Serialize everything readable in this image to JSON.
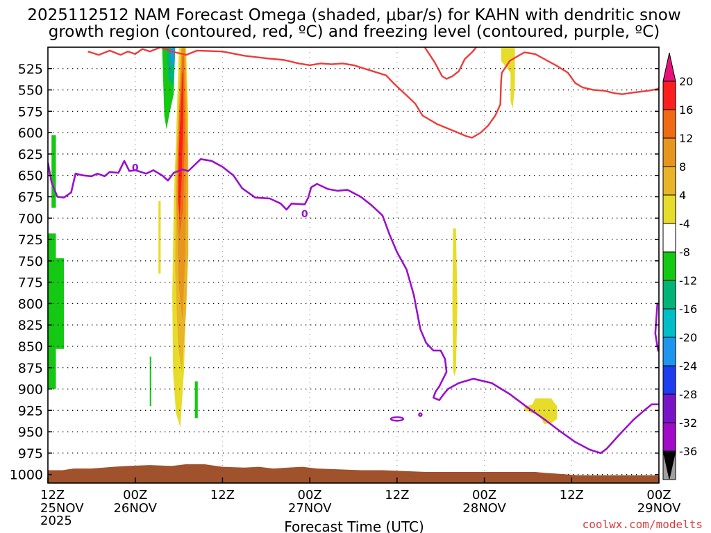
{
  "chart_data": {
    "type": "heatmap",
    "title_line1": "2025112512 NAM Forecast Omega (shaded, μbar/s) for KAHN with dendritic snow",
    "title_line2": "growth region (contoured, red, ºC) and freezing level (contoured, purple, ºC)",
    "xlabel": "Forecast Time (UTC)",
    "ylabel": "",
    "watermark": "coolwx.com/modelts",
    "x_range_hours": [
      0,
      84
    ],
    "y_range_hpa": [
      1010,
      500
    ],
    "x_ticks": [
      {
        "hour": 0,
        "time": "12Z",
        "date": "25NOV",
        "year": "2025"
      },
      {
        "hour": 12,
        "time": "00Z",
        "date": "26NOV",
        "year": ""
      },
      {
        "hour": 24,
        "time": "12Z",
        "date": "",
        "year": ""
      },
      {
        "hour": 36,
        "time": "00Z",
        "date": "27NOV",
        "year": ""
      },
      {
        "hour": 48,
        "time": "12Z",
        "date": "",
        "year": ""
      },
      {
        "hour": 60,
        "time": "00Z",
        "date": "28NOV",
        "year": ""
      },
      {
        "hour": 72,
        "time": "12Z",
        "date": "",
        "year": ""
      },
      {
        "hour": 84,
        "time": "00Z",
        "date": "29NOV",
        "year": ""
      }
    ],
    "y_ticks": [
      525,
      550,
      575,
      600,
      625,
      650,
      675,
      700,
      725,
      750,
      775,
      800,
      825,
      850,
      875,
      900,
      925,
      950,
      975,
      1000
    ],
    "colorbar": {
      "labels": [
        "20",
        "16",
        "12",
        "8",
        "4",
        "-4",
        "-8",
        "-12",
        "-16",
        "-20",
        "-24",
        "-28",
        "-32",
        "-36"
      ],
      "colors": [
        "#ff1e1e",
        "#f06a14",
        "#e6961e",
        "#e8b428",
        "#e8dc2a",
        "#ffffff",
        "#14c814",
        "#00b478",
        "#00bec8",
        "#1e96f0",
        "#1e3cf0",
        "#7814c8",
        "#a00ac8",
        "#a0a0a0"
      ],
      "top_arrow_color": "#e6147a",
      "bottom_arrow_color": "#000000"
    },
    "contour_labels": [
      {
        "text": "0",
        "hour": 12.0,
        "hpa": 640
      },
      {
        "text": "0",
        "hour": 35.3,
        "hpa": 694
      }
    ],
    "dgz_top_curve": [
      [
        5.5,
        505
      ],
      [
        7,
        509
      ],
      [
        8.5,
        504
      ],
      [
        10,
        509
      ],
      [
        11,
        505
      ],
      [
        12,
        508
      ],
      [
        13,
        502
      ],
      [
        14,
        505
      ],
      [
        15.5,
        500
      ],
      [
        17,
        505
      ],
      [
        19,
        509
      ],
      [
        20.5,
        504
      ],
      [
        24,
        505
      ],
      [
        27,
        510
      ],
      [
        30,
        513
      ],
      [
        32.5,
        515
      ],
      [
        34.5,
        519
      ],
      [
        36,
        521
      ],
      [
        37.5,
        519
      ],
      [
        39,
        520
      ],
      [
        40.5,
        519
      ],
      [
        42,
        521
      ],
      [
        43.5,
        525
      ],
      [
        45,
        529
      ],
      [
        46.5,
        533
      ],
      [
        47.5,
        542
      ],
      [
        48.5,
        550
      ],
      [
        49.5,
        558
      ],
      [
        50.5,
        566
      ],
      [
        51.5,
        580
      ],
      [
        53.5,
        590
      ],
      [
        55.5,
        597
      ],
      [
        57.5,
        604
      ],
      [
        58.3,
        606
      ],
      [
        59.5,
        600
      ],
      [
        60.5,
        592
      ],
      [
        61.5,
        580
      ],
      [
        62.2,
        567
      ],
      [
        62.3,
        540
      ],
      [
        62.4,
        530
      ],
      [
        63.5,
        516
      ],
      [
        64.5,
        511
      ],
      [
        65.5,
        506
      ],
      [
        67,
        508
      ],
      [
        68.5,
        515
      ],
      [
        70,
        522
      ],
      [
        71.5,
        530
      ],
      [
        72.5,
        542
      ],
      [
        73.5,
        547
      ],
      [
        75,
        550
      ],
      [
        76.5,
        551
      ],
      [
        78,
        554
      ],
      [
        79,
        555
      ],
      [
        80.5,
        553
      ],
      [
        82.5,
        551
      ],
      [
        83.8,
        549
      ],
      [
        84,
        548
      ]
    ],
    "dgz_bottom_curve": [
      [
        51.8,
        500
      ],
      [
        53.2,
        518
      ],
      [
        54.2,
        534
      ],
      [
        54.8,
        537
      ],
      [
        55.6,
        534
      ],
      [
        56.5,
        528
      ],
      [
        57.3,
        514
      ],
      [
        58.4,
        505
      ],
      [
        58.9,
        500
      ]
    ],
    "freezing_level": [
      [
        0,
        635
      ],
      [
        0.5,
        658
      ],
      [
        1.3,
        675
      ],
      [
        2.2,
        676
      ],
      [
        3.2,
        670
      ],
      [
        3.8,
        648
      ],
      [
        4.8,
        650
      ],
      [
        6,
        651
      ],
      [
        6.8,
        648
      ],
      [
        7.8,
        651
      ],
      [
        8.5,
        646
      ],
      [
        9.7,
        647
      ],
      [
        10.5,
        633
      ],
      [
        11.2,
        645
      ],
      [
        12,
        644
      ],
      [
        12.8,
        646
      ],
      [
        13.5,
        648
      ],
      [
        14.5,
        644
      ],
      [
        15.7,
        650
      ],
      [
        16.5,
        656
      ],
      [
        17.3,
        647
      ],
      [
        18.5,
        643
      ],
      [
        19.3,
        645
      ],
      [
        21,
        631
      ],
      [
        22.5,
        633
      ],
      [
        24,
        640
      ],
      [
        25.5,
        650
      ],
      [
        26.7,
        665
      ],
      [
        28.5,
        676
      ],
      [
        30.5,
        677
      ],
      [
        32,
        683
      ],
      [
        32.8,
        690
      ],
      [
        33.5,
        683
      ],
      [
        35.3,
        684
      ],
      [
        35.8,
        676
      ],
      [
        36.2,
        664
      ],
      [
        37,
        660
      ],
      [
        38.5,
        666
      ],
      [
        39.8,
        668
      ],
      [
        41.2,
        667
      ],
      [
        43,
        675
      ],
      [
        44.5,
        685
      ],
      [
        46,
        697
      ],
      [
        47,
        720
      ],
      [
        48,
        740
      ],
      [
        49.3,
        760
      ],
      [
        50.3,
        790
      ],
      [
        51.2,
        830
      ],
      [
        52,
        846
      ],
      [
        53,
        855
      ],
      [
        54,
        855
      ],
      [
        54.6,
        865
      ],
      [
        54.8,
        880
      ],
      [
        53.8,
        897
      ],
      [
        53.3,
        903
      ],
      [
        53,
        910
      ],
      [
        53.8,
        913
      ],
      [
        54.5,
        905
      ],
      [
        55,
        900
      ],
      [
        56.5,
        893
      ],
      [
        58.5,
        888
      ],
      [
        61,
        893
      ],
      [
        63.5,
        906
      ],
      [
        66,
        922
      ],
      [
        68.5,
        937
      ],
      [
        70.5,
        950
      ],
      [
        72.5,
        962
      ],
      [
        74.5,
        971
      ],
      [
        76,
        975
      ],
      [
        76.8,
        970
      ],
      [
        78.5,
        954
      ],
      [
        80.5,
        936
      ],
      [
        82,
        925
      ],
      [
        83,
        918
      ],
      [
        84,
        918
      ]
    ],
    "freezing_small_loops": [
      {
        "center_hour": 48.0,
        "center_hpa": 935
      },
      {
        "center_hour": 51.2,
        "center_hpa": 930
      }
    ],
    "freezing_right_edge": [
      [
        83.8,
        799
      ],
      [
        83.5,
        835
      ],
      [
        83.9,
        856
      ]
    ],
    "omega_regions": [
      {
        "value_color": "#14c814",
        "points": [
          [
            0.5,
            603
          ],
          [
            1.1,
            603
          ],
          [
            1.1,
            688
          ],
          [
            0.5,
            688
          ]
        ]
      },
      {
        "value_color": "#14c814",
        "points": [
          [
            0,
            718
          ],
          [
            1.1,
            718
          ],
          [
            1.1,
            900
          ],
          [
            0,
            900
          ]
        ]
      },
      {
        "value_color": "#14c814",
        "points": [
          [
            1.1,
            747
          ],
          [
            2.2,
            747
          ],
          [
            2.2,
            853
          ],
          [
            1.1,
            853
          ]
        ]
      },
      {
        "value_color": "#14c814",
        "points": [
          [
            14.0,
            862
          ],
          [
            14.2,
            862
          ],
          [
            14.2,
            920
          ],
          [
            14.0,
            920
          ]
        ]
      },
      {
        "value_color": "#14c814",
        "points": [
          [
            20.2,
            891
          ],
          [
            20.6,
            891
          ],
          [
            20.6,
            934
          ],
          [
            20.2,
            934
          ]
        ]
      },
      {
        "value_color": "#14c814",
        "points": [
          [
            15.7,
            500
          ],
          [
            17.5,
            500
          ],
          [
            17.3,
            555
          ],
          [
            16.7,
            578
          ],
          [
            16.3,
            596
          ],
          [
            16.0,
            580
          ]
        ]
      },
      {
        "value_color": "#00b478",
        "points": [
          [
            16.3,
            500
          ],
          [
            17.5,
            500
          ],
          [
            17.3,
            545
          ],
          [
            16.6,
            538
          ]
        ]
      },
      {
        "value_color": "#1e96f0",
        "points": [
          [
            16.8,
            500
          ],
          [
            17.4,
            500
          ],
          [
            17.3,
            520
          ],
          [
            17.0,
            522
          ]
        ]
      },
      {
        "value_color": "#e8dc2a",
        "points": [
          [
            18.0,
            500
          ],
          [
            19.0,
            500
          ],
          [
            19.3,
            580
          ],
          [
            19.1,
            700
          ],
          [
            19.0,
            800
          ],
          [
            18.7,
            880
          ],
          [
            18.2,
            945
          ],
          [
            17.6,
            928
          ],
          [
            17.2,
            880
          ],
          [
            17.1,
            790
          ],
          [
            17.3,
            680
          ],
          [
            17.6,
            610
          ]
        ]
      },
      {
        "value_color": "#e8dc2a",
        "points": [
          [
            15.2,
            680
          ],
          [
            15.5,
            680
          ],
          [
            15.5,
            765
          ],
          [
            15.2,
            765
          ]
        ]
      },
      {
        "value_color": "#e8b428",
        "points": [
          [
            18.3,
            500
          ],
          [
            18.9,
            500
          ],
          [
            19.3,
            620
          ],
          [
            19.3,
            740
          ],
          [
            19.0,
            810
          ],
          [
            18.4,
            880
          ],
          [
            17.9,
            850
          ],
          [
            17.5,
            760
          ],
          [
            17.6,
            650
          ],
          [
            17.9,
            580
          ]
        ]
      },
      {
        "value_color": "#e6961e",
        "points": [
          [
            18.4,
            500
          ],
          [
            18.8,
            500
          ],
          [
            19.1,
            620
          ],
          [
            18.9,
            740
          ],
          [
            18.5,
            820
          ],
          [
            18.0,
            780
          ],
          [
            17.7,
            680
          ],
          [
            17.9,
            600
          ]
        ]
      },
      {
        "value_color": "#f06a14",
        "points": [
          [
            18.5,
            510
          ],
          [
            18.7,
            510
          ],
          [
            18.8,
            600
          ],
          [
            18.6,
            690
          ],
          [
            18.1,
            720
          ],
          [
            17.9,
            640
          ],
          [
            18.1,
            570
          ]
        ]
      },
      {
        "value_color": "#ff1e1e",
        "points": [
          [
            18.5,
            530
          ],
          [
            18.6,
            530
          ],
          [
            18.6,
            580
          ],
          [
            18.4,
            650
          ],
          [
            18.1,
            700
          ],
          [
            17.9,
            680
          ],
          [
            18.0,
            620
          ]
        ]
      },
      {
        "value_color": "#e8dc2a",
        "points": [
          [
            55.7,
            712
          ],
          [
            56.1,
            712
          ],
          [
            56.3,
            800
          ],
          [
            56.1,
            878
          ],
          [
            55.9,
            885
          ],
          [
            55.7,
            878
          ],
          [
            55.6,
            800
          ]
        ]
      },
      {
        "value_color": "#e8dc2a",
        "points": [
          [
            62.3,
            500
          ],
          [
            64.2,
            500
          ],
          [
            64.2,
            545
          ],
          [
            63.9,
            572
          ],
          [
            63.6,
            563
          ],
          [
            63.6,
            530
          ],
          [
            62.3,
            516
          ]
        ]
      },
      {
        "value_color": "#e8dc2a",
        "points": [
          [
            65.5,
            921
          ],
          [
            66.6,
            918
          ],
          [
            67.0,
            911
          ],
          [
            69.2,
            911
          ],
          [
            70.0,
            920
          ],
          [
            70.0,
            935
          ],
          [
            69.2,
            940
          ],
          [
            68.2,
            941
          ],
          [
            67.6,
            930
          ],
          [
            66.5,
            928
          ],
          [
            65.5,
            925
          ]
        ]
      }
    ],
    "terrain_color": "#a0522d",
    "terrain_top": [
      [
        0,
        995
      ],
      [
        2,
        995
      ],
      [
        3.5,
        993
      ],
      [
        6,
        993
      ],
      [
        9,
        991
      ],
      [
        11,
        990
      ],
      [
        14,
        989
      ],
      [
        17,
        990
      ],
      [
        19,
        988
      ],
      [
        21.5,
        988
      ],
      [
        24,
        991
      ],
      [
        27,
        992
      ],
      [
        29,
        991
      ],
      [
        31,
        993
      ],
      [
        33,
        992
      ],
      [
        35,
        991
      ],
      [
        37,
        993
      ],
      [
        40,
        994
      ],
      [
        43,
        995
      ],
      [
        46,
        995
      ],
      [
        49,
        996
      ],
      [
        52,
        997
      ],
      [
        56,
        997
      ],
      [
        60,
        997
      ],
      [
        64,
        997
      ],
      [
        67,
        997
      ],
      [
        68.2,
        998
      ],
      [
        70,
        999
      ],
      [
        73,
        1001
      ],
      [
        76,
        1001
      ],
      [
        80,
        1001
      ],
      [
        84,
        1001
      ]
    ]
  }
}
